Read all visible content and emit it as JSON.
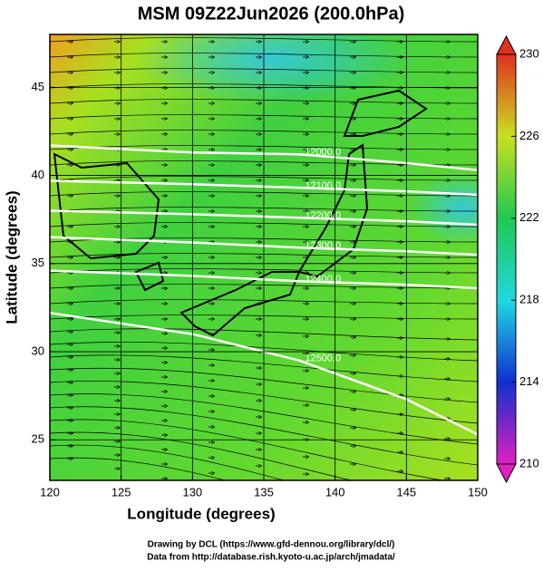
{
  "chart_data": {
    "type": "map",
    "title": "MSM 09Z22Jun2026 (200.0hPa)",
    "x_label": "Longitude (degrees)",
    "y_label": "Latitude  (degrees)",
    "xlim": [
      120,
      150
    ],
    "ylim": [
      22.7,
      48
    ],
    "xticks": [
      120,
      125,
      130,
      135,
      140,
      145,
      150
    ],
    "yticks": [
      25,
      30,
      35,
      40,
      45
    ],
    "grid": true,
    "contour_lons": [
      120,
      130,
      137.5,
      145,
      150
    ],
    "contours": [
      {
        "level": {
          "value": 12000,
          "label": "12000.0"
        },
        "lats": [
          41.7,
          41.3,
          41.2,
          40.7,
          40.3
        ]
      },
      {
        "level": {
          "value": 12100,
          "label": "12100.0"
        },
        "lats": [
          39.7,
          39.5,
          39.3,
          39.1,
          38.9
        ]
      },
      {
        "level": {
          "value": 12200,
          "label": "12200.0"
        },
        "lats": [
          38.0,
          37.8,
          37.6,
          37.4,
          37.2
        ]
      },
      {
        "level": {
          "value": 12300,
          "label": "12300.0"
        },
        "lats": [
          36.5,
          36.2,
          35.9,
          35.7,
          35.5
        ]
      },
      {
        "level": {
          "value": 12400,
          "label": "12400.0"
        },
        "lats": [
          34.6,
          34.3,
          34.0,
          33.8,
          33.6
        ]
      },
      {
        "level": {
          "value": 12500,
          "label": "12500.0"
        },
        "lats": [
          32.2,
          31.0,
          29.5,
          27.3,
          25.3
        ]
      }
    ],
    "colorbar": {
      "lim": [
        210,
        230
      ],
      "ticks": [
        210,
        214,
        218,
        222,
        226,
        230
      ],
      "colors": [
        "#e020c0",
        "#1030d0",
        "#20d8e0",
        "#20c850",
        "#c8e020",
        "#e03020"
      ]
    },
    "credits": [
      "Drawing by DCL (https://www.gfd-dennou.org/library/dcl/)",
      "Data from http://database.rish.kyoto-u.ac.jp/arch/jmadata/"
    ]
  }
}
